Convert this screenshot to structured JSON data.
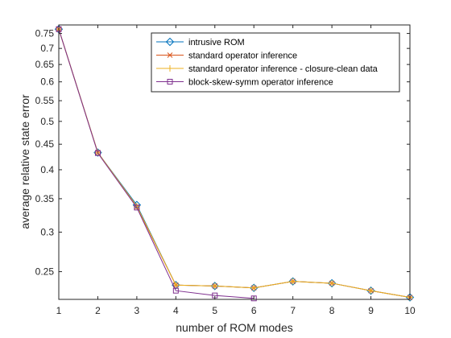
{
  "chart_data": {
    "type": "line",
    "xlabel": "number of ROM modes",
    "ylabel": "average relative state error",
    "y_scale": "log",
    "xlim": [
      1,
      10
    ],
    "ylim": [
      0.22,
      0.78
    ],
    "x_ticks": [
      1,
      2,
      3,
      4,
      5,
      6,
      7,
      8,
      9,
      10
    ],
    "y_ticks": [
      0.25,
      0.3,
      0.35,
      0.4,
      0.45,
      0.5,
      0.55,
      0.6,
      0.65,
      0.7,
      0.75
    ],
    "y_tick_labels": [
      "0.25",
      "0.3",
      "0.35",
      "0.4",
      "0.45",
      "0.5",
      "0.55",
      "0.6",
      "0.65",
      "0.7",
      "0.75"
    ],
    "grid": false,
    "legend_position": "top-right",
    "series": [
      {
        "name": "intrusive ROM",
        "color": "#0072BD",
        "marker": "diamond",
        "x": [
          1,
          2,
          3,
          4,
          5,
          6,
          7,
          8,
          9,
          10
        ],
        "y": [
          0.765,
          0.433,
          0.34,
          0.235,
          0.234,
          0.232,
          0.239,
          0.237,
          0.229,
          0.222
        ]
      },
      {
        "name": "standard operator inference",
        "color": "#D95319",
        "marker": "x",
        "x": [
          1,
          2,
          3,
          4,
          5,
          6,
          7,
          8,
          9,
          10
        ],
        "y": [
          0.765,
          0.433,
          0.337,
          0.235,
          0.234,
          0.232,
          0.239,
          0.237,
          0.229,
          0.222
        ]
      },
      {
        "name": "standard operator inference - closure-clean data",
        "color": "#EDB120",
        "marker": "plus",
        "x": [
          1,
          2,
          3,
          4,
          5,
          6,
          7,
          8,
          9,
          10
        ],
        "y": [
          0.765,
          0.433,
          0.338,
          0.235,
          0.234,
          0.232,
          0.239,
          0.237,
          0.229,
          0.222
        ]
      },
      {
        "name": "block-skew-symm operator inference",
        "color": "#7E2F8E",
        "marker": "square",
        "x": [
          1,
          2,
          3,
          4,
          5,
          6
        ],
        "y": [
          0.765,
          0.432,
          0.336,
          0.229,
          0.224,
          0.221
        ]
      }
    ]
  }
}
